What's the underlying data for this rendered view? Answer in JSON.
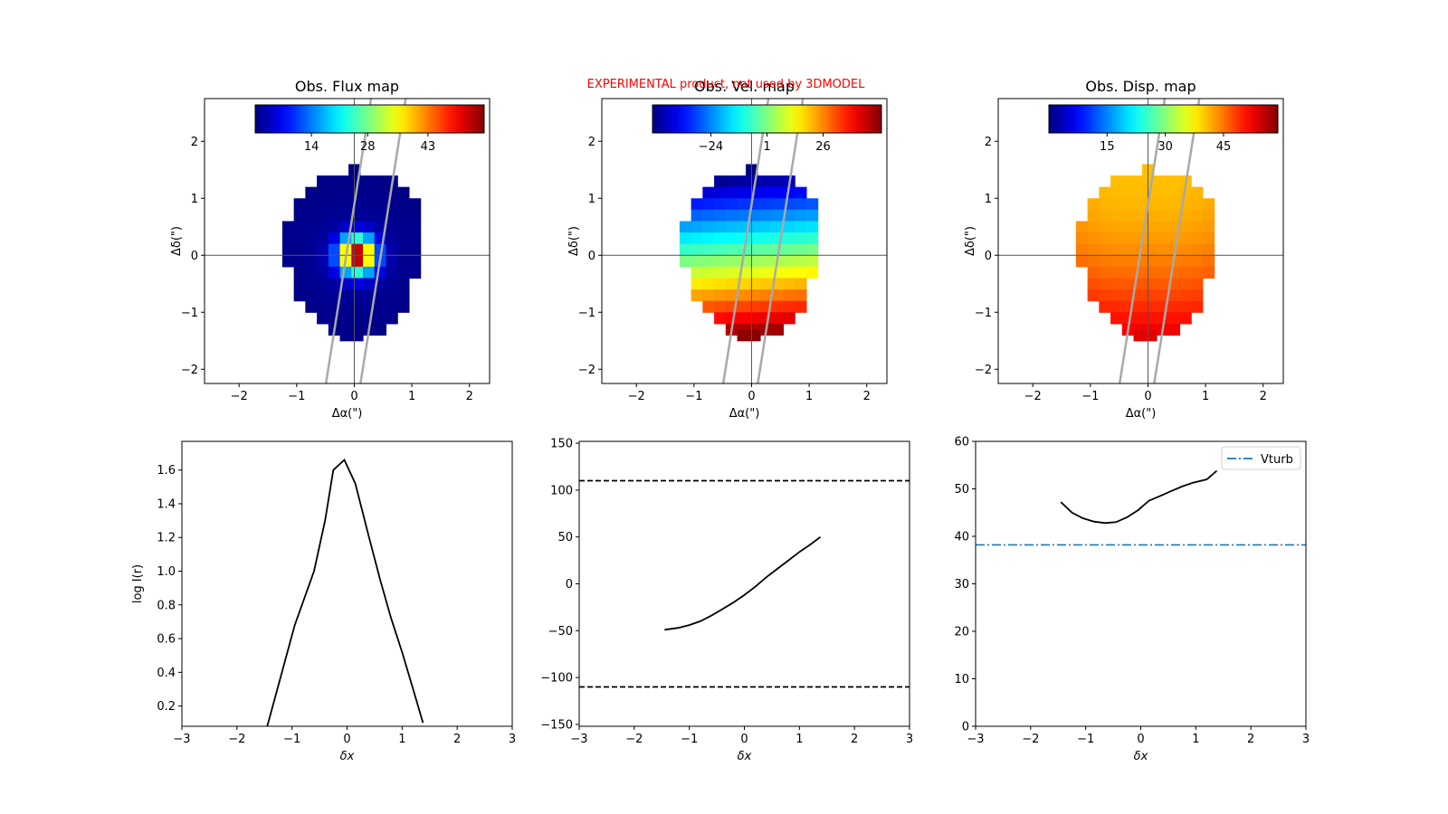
{
  "figure": {
    "banner": "EXPERIMENTAL product, not used by 3DMODEL"
  },
  "chart_data": [
    {
      "type": "heatmap",
      "title": "Obs. Flux map",
      "xlabel": "Δα(\")",
      "ylabel": "Δδ(\")",
      "xlim": [
        -2.6,
        2.35
      ],
      "ylim": [
        -2.25,
        2.75
      ],
      "xticks": [
        -2,
        -1,
        0,
        1,
        2
      ],
      "yticks": [
        -2,
        -1,
        0,
        1,
        2
      ],
      "colormap": "jet",
      "colorbar": {
        "range": [
          0,
          57
        ],
        "ticks": [
          14,
          28,
          43
        ]
      },
      "map": "flux"
    },
    {
      "type": "heatmap",
      "title": "Obs. Vel. map",
      "xlabel": "Δα(\")",
      "ylabel": "Δδ(\")",
      "xlim": [
        -2.6,
        2.35
      ],
      "ylim": [
        -2.25,
        2.75
      ],
      "xticks": [
        -2,
        -1,
        0,
        1,
        2
      ],
      "yticks": [
        -2,
        -1,
        0,
        1,
        2
      ],
      "colormap": "jet",
      "colorbar": {
        "range": [
          -50,
          52
        ],
        "ticks": [
          -24,
          1,
          26
        ]
      },
      "map": "velocity"
    },
    {
      "type": "heatmap",
      "title": "Obs. Disp. map",
      "xlabel": "Δα(\")",
      "ylabel": "Δδ(\")",
      "xlim": [
        -2.6,
        2.35
      ],
      "ylim": [
        -2.25,
        2.75
      ],
      "xticks": [
        -2,
        -1,
        0,
        1,
        2
      ],
      "yticks": [
        -2,
        -1,
        0,
        1,
        2
      ],
      "colormap": "jet",
      "colorbar": {
        "range": [
          0,
          59
        ],
        "ticks": [
          15,
          30,
          45
        ]
      },
      "map": "dispersion"
    },
    {
      "type": "line",
      "title": "",
      "xlabel": "δx",
      "ylabel": "log I(r)",
      "xlim": [
        -3,
        3
      ],
      "ylim": [
        0.08,
        1.77
      ],
      "xticks": [
        -3,
        -2,
        -1,
        0,
        1,
        2,
        3
      ],
      "yticks": [
        0.2,
        0.4,
        0.6,
        0.8,
        1.0,
        1.2,
        1.4,
        1.6
      ],
      "series": [
        {
          "x": [
            -1.45,
            -1.2,
            -0.95,
            -0.6,
            -0.4,
            -0.25,
            -0.05,
            0.15,
            0.4,
            0.6,
            0.8,
            1.0,
            1.2,
            1.38
          ],
          "y": [
            0.08,
            0.38,
            0.68,
            1.0,
            1.3,
            1.6,
            1.66,
            1.52,
            1.2,
            0.95,
            0.72,
            0.52,
            0.3,
            0.1
          ]
        }
      ]
    },
    {
      "type": "line",
      "title": "",
      "xlabel": "δx",
      "ylabel": "",
      "xlim": [
        -3,
        3
      ],
      "ylim": [
        -152,
        152
      ],
      "xticks": [
        -3,
        -2,
        -1,
        0,
        1,
        2,
        3
      ],
      "yticks": [
        -150,
        -100,
        -50,
        0,
        50,
        100,
        150
      ],
      "hlines": [
        110,
        -110
      ],
      "series": [
        {
          "x": [
            -1.45,
            -1.2,
            -1.0,
            -0.8,
            -0.6,
            -0.4,
            -0.2,
            0.0,
            0.2,
            0.4,
            0.6,
            0.8,
            1.0,
            1.2,
            1.38
          ],
          "y": [
            -49,
            -47,
            -44,
            -40,
            -34,
            -27,
            -20,
            -12,
            -3,
            7,
            16,
            25,
            34,
            42,
            50
          ]
        }
      ]
    },
    {
      "type": "line",
      "title": "",
      "xlabel": "δx",
      "ylabel": "",
      "xlim": [
        -3,
        3
      ],
      "ylim": [
        0,
        60
      ],
      "xticks": [
        -3,
        -2,
        -1,
        0,
        1,
        2,
        3
      ],
      "yticks": [
        0,
        10,
        20,
        30,
        40,
        50,
        60
      ],
      "hline": {
        "y": 38.2,
        "label": "Vturb",
        "color": "#1f77b4"
      },
      "legend": "top-right",
      "series": [
        {
          "x": [
            -1.45,
            -1.25,
            -1.05,
            -0.85,
            -0.65,
            -0.45,
            -0.25,
            -0.05,
            0.15,
            0.35,
            0.55,
            0.75,
            0.95,
            1.2,
            1.38
          ],
          "y": [
            47.2,
            45.0,
            43.8,
            43.1,
            42.8,
            43.0,
            44.0,
            45.5,
            47.5,
            48.5,
            49.5,
            50.5,
            51.3,
            52.0,
            53.8
          ]
        }
      ]
    }
  ]
}
